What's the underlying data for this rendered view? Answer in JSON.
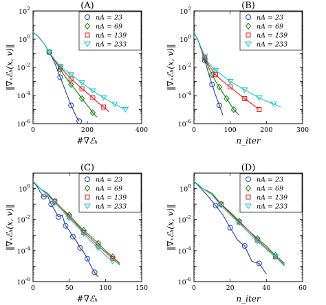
{
  "series_names": [
    "nA = 23",
    "nA = 69",
    "nA = 139",
    "nA = 233"
  ],
  "colors": [
    "#1f3ca6",
    "#0b7a0b",
    "#e01818",
    "#18c4c8"
  ],
  "markers": [
    "circle",
    "diamond",
    "square",
    "triangle-down"
  ],
  "chart_data": [
    {
      "type": "line",
      "panel_title": "(A)",
      "ylabel": "‖∇ₓℰₕ(x, v)‖",
      "xlabel": "#∇ℰₕ",
      "xlim": [
        0,
        400
      ],
      "x_ticks": [
        0,
        200,
        400
      ],
      "ylim": [
        1e-06,
        100.0
      ],
      "y_scale": "log",
      "y_tick_labels": [
        "10^-6",
        "10^-4",
        "10^-2",
        "10^0",
        "10^2"
      ],
      "legend": "top-right",
      "series": [
        {
          "name": "nA = 23",
          "x": [
            0,
            20,
            40,
            60,
            80,
            100,
            120,
            140,
            160,
            170
          ],
          "y": [
            3,
            1.5,
            0.5,
            0.12,
            0.02,
            0.002,
            0.0002,
            2e-05,
            3e-06,
            1.5e-06
          ]
        },
        {
          "name": "nA = 69",
          "x": [
            0,
            20,
            40,
            60,
            80,
            100,
            120,
            140,
            160,
            180,
            200,
            220,
            235
          ],
          "y": [
            3,
            1.5,
            0.5,
            0.12,
            0.03,
            0.007,
            0.002,
            0.0006,
            0.0002,
            6e-05,
            2e-05,
            6e-06,
            3e-06
          ]
        },
        {
          "name": "nA = 139",
          "x": [
            0,
            20,
            40,
            60,
            80,
            100,
            120,
            140,
            160,
            180,
            200,
            220,
            240,
            260,
            280
          ],
          "y": [
            3,
            1.5,
            0.5,
            0.12,
            0.03,
            0.01,
            0.004,
            0.0015,
            0.0007,
            0.0003,
            0.00015,
            7e-05,
            3e-05,
            1.5e-05,
            7e-06
          ]
        },
        {
          "name": "nA = 233",
          "x": [
            0,
            20,
            40,
            60,
            80,
            100,
            120,
            140,
            160,
            180,
            200,
            220,
            240,
            260,
            280,
            300,
            320,
            340
          ],
          "y": [
            3,
            1.5,
            0.5,
            0.12,
            0.035,
            0.012,
            0.006,
            0.003,
            0.0015,
            0.0008,
            0.0004,
            0.00022,
            0.00012,
            7e-05,
            4e-05,
            2.5e-05,
            1.5e-05,
            1e-05
          ]
        }
      ]
    },
    {
      "type": "line",
      "panel_title": "(B)",
      "ylabel": "‖∇ₓℰₕ(x, v)‖",
      "xlabel": "n_iter",
      "xlim": [
        0,
        300
      ],
      "x_ticks": [
        0,
        100,
        200,
        300
      ],
      "ylim": [
        1e-06,
        100.0
      ],
      "y_scale": "log",
      "y_tick_labels": [
        "10^-6",
        "10^-4",
        "10^-2",
        "10^0",
        "10^2"
      ],
      "legend": "top-right",
      "series": [
        {
          "name": "nA = 23",
          "x": [
            0,
            10,
            20,
            30,
            40,
            50,
            60,
            70,
            80
          ],
          "y": [
            3,
            1.0,
            0.2,
            0.03,
            0.004,
            0.0006,
            0.0001,
            2e-05,
            4e-06
          ]
        },
        {
          "name": "nA = 69",
          "x": [
            0,
            10,
            20,
            30,
            40,
            50,
            60,
            70,
            80,
            90,
            100,
            110,
            125
          ],
          "y": [
            3,
            1.0,
            0.2,
            0.04,
            0.01,
            0.003,
            0.001,
            0.0004,
            0.00015,
            6e-05,
            2.5e-05,
            1e-05,
            4e-06
          ]
        },
        {
          "name": "nA = 139",
          "x": [
            0,
            10,
            20,
            30,
            40,
            60,
            80,
            100,
            120,
            140,
            160,
            180
          ],
          "y": [
            3,
            1.0,
            0.2,
            0.05,
            0.015,
            0.003,
            0.001,
            0.0004,
            0.00015,
            6e-05,
            2.5e-05,
            1e-05
          ]
        },
        {
          "name": "nA = 233",
          "x": [
            0,
            10,
            20,
            30,
            40,
            60,
            80,
            100,
            120,
            140,
            160,
            180,
            200,
            220,
            240
          ],
          "y": [
            3,
            1.0,
            0.25,
            0.06,
            0.02,
            0.006,
            0.0025,
            0.001,
            0.0005,
            0.00025,
            0.00013,
            7e-05,
            4e-05,
            2.5e-05,
            1.5e-05
          ]
        }
      ]
    },
    {
      "type": "line",
      "panel_title": "(C)",
      "ylabel": "‖∇ₓℰₕ(x, v)‖",
      "xlabel": "#∇ℰₕ",
      "xlim": [
        0,
        150
      ],
      "x_ticks": [
        0,
        50,
        100,
        150
      ],
      "ylim": [
        1e-06,
        10.0
      ],
      "y_scale": "log",
      "y_tick_labels": [
        "10^-6",
        "10^-4",
        "10^-2",
        "10^0"
      ],
      "legend": "top-right",
      "series": [
        {
          "name": "nA = 23",
          "x": [
            0,
            5,
            10,
            15,
            20,
            25,
            30,
            35,
            40,
            45,
            50,
            55,
            60,
            65,
            70,
            75,
            80,
            85,
            90
          ],
          "y": [
            3,
            1.5,
            0.6,
            0.3,
            0.35,
            0.1,
            0.04,
            0.015,
            0.02,
            0.004,
            0.002,
            0.0008,
            0.0004,
            0.00015,
            8e-05,
            3e-05,
            1e-05,
            4e-06,
            2e-06
          ]
        },
        {
          "name": "nA = 69",
          "x": [
            0,
            10,
            20,
            30,
            40,
            50,
            60,
            70,
            80,
            90,
            100,
            110,
            120
          ],
          "y": [
            3,
            1.0,
            0.5,
            0.15,
            0.05,
            0.02,
            0.006,
            0.002,
            0.0008,
            0.0003,
            0.0001,
            4e-05,
            1.5e-05
          ]
        },
        {
          "name": "nA = 139",
          "x": [
            0,
            10,
            20,
            30,
            40,
            50,
            60,
            70,
            80,
            90,
            100,
            110,
            120
          ],
          "y": [
            3,
            1.0,
            0.4,
            0.15,
            0.05,
            0.015,
            0.005,
            0.0015,
            0.0006,
            0.0002,
            8e-05,
            3e-05,
            1.2e-05
          ]
        },
        {
          "name": "nA = 233",
          "x": [
            0,
            10,
            20,
            30,
            40,
            50,
            60,
            70,
            80,
            90,
            100,
            110
          ],
          "y": [
            3,
            1.0,
            0.4,
            0.12,
            0.04,
            0.012,
            0.004,
            0.0012,
            0.0004,
            0.00015,
            5e-05,
            2e-05
          ]
        }
      ]
    },
    {
      "type": "line",
      "panel_title": "(D)",
      "ylabel": "‖∇ₓℰₕ(x, v)‖",
      "xlabel": "n_iter",
      "xlim": [
        0,
        60
      ],
      "x_ticks": [
        0,
        20,
        40,
        60
      ],
      "ylim": [
        1e-06,
        10.0
      ],
      "y_scale": "log",
      "y_tick_labels": [
        "10^-6",
        "10^-4",
        "10^-2",
        "10^0"
      ],
      "legend": "top-right",
      "series": [
        {
          "name": "nA = 23",
          "x": [
            0,
            4,
            8,
            12,
            16,
            20,
            24,
            28,
            32,
            36,
            40
          ],
          "y": [
            3,
            1.0,
            0.3,
            0.08,
            0.02,
            0.003,
            0.0005,
            0.0002,
            2e-05,
            1.5e-05,
            3e-06
          ]
        },
        {
          "name": "nA = 69",
          "x": [
            0,
            5,
            10,
            15,
            20,
            25,
            30,
            35,
            40,
            45,
            50
          ],
          "y": [
            3,
            1.0,
            0.5,
            0.1,
            0.03,
            0.008,
            0.002,
            0.0006,
            0.0002,
            5e-05,
            1.5e-05
          ]
        },
        {
          "name": "nA = 139",
          "x": [
            0,
            5,
            10,
            15,
            20,
            25,
            30,
            35,
            40,
            45,
            50
          ],
          "y": [
            3,
            1.0,
            0.4,
            0.1,
            0.025,
            0.007,
            0.002,
            0.0005,
            0.00015,
            4e-05,
            1.2e-05
          ]
        },
        {
          "name": "nA = 233",
          "x": [
            0,
            5,
            10,
            15,
            20,
            25,
            30,
            35,
            40,
            45,
            50
          ],
          "y": [
            3,
            1.0,
            0.4,
            0.08,
            0.02,
            0.006,
            0.0015,
            0.0004,
            0.00012,
            4e-05,
            1e-05
          ]
        }
      ]
    }
  ]
}
